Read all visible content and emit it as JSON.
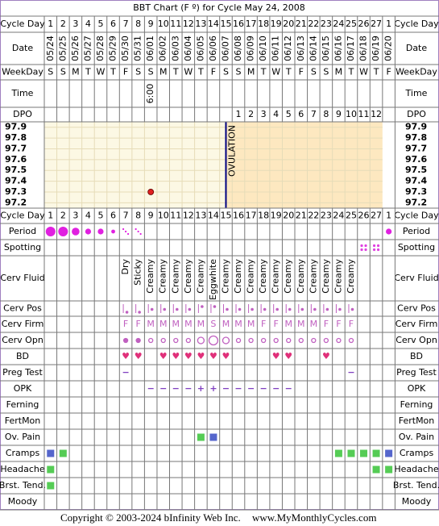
{
  "title": "BBT Chart (F º) for Cycle May 24, 2008",
  "labels": {
    "cycle_day": "Cycle Day",
    "date": "Date",
    "weekday": "WeekDay",
    "time": "Time",
    "dpo": "DPO",
    "period": "Period",
    "spotting": "Spotting",
    "cerv_fluid": "Cerv Fluid",
    "cerv_pos": "Cerv Pos",
    "cerv_firm": "Cerv Firm",
    "cerv_opn": "Cerv Opn",
    "bd": "BD",
    "preg_test": "Preg Test",
    "opk": "OPK",
    "ferning": "Ferning",
    "fertmon": "FertMon",
    "ov_pain": "Ov. Pain",
    "cramps": "Cramps",
    "headache": "Headache",
    "brst_tend": "Brst. Tend.",
    "moody": "Moody"
  },
  "cycle_days": [
    1,
    2,
    3,
    4,
    5,
    6,
    7,
    8,
    9,
    10,
    11,
    12,
    13,
    14,
    15,
    16,
    17,
    18,
    19,
    20,
    21,
    22,
    23,
    24,
    25,
    26,
    27,
    1
  ],
  "dates": [
    "05/24",
    "05/25",
    "05/26",
    "05/27",
    "05/28",
    "05/29",
    "05/30",
    "05/31",
    "06/01",
    "06/02",
    "06/03",
    "06/04",
    "06/05",
    "06/06",
    "06/07",
    "06/08",
    "06/09",
    "06/10",
    "06/11",
    "06/12",
    "06/13",
    "06/14",
    "06/15",
    "06/16",
    "06/17",
    "06/18",
    "06/19",
    "06/20"
  ],
  "weekdays": [
    "S",
    "S",
    "M",
    "T",
    "W",
    "T",
    "F",
    "S",
    "S",
    "M",
    "T",
    "W",
    "T",
    "F",
    "S",
    "S",
    "M",
    "T",
    "W",
    "T",
    "F",
    "S",
    "S",
    "M",
    "T",
    "W",
    "T",
    "F"
  ],
  "times": [
    null,
    null,
    null,
    null,
    null,
    null,
    null,
    null,
    "6:00",
    null,
    null,
    null,
    null,
    null,
    null,
    null,
    null,
    null,
    null,
    null,
    null,
    null,
    null,
    null,
    null,
    null,
    null,
    null
  ],
  "dpo": [
    null,
    null,
    null,
    null,
    null,
    null,
    null,
    null,
    null,
    null,
    null,
    null,
    null,
    null,
    null,
    1,
    2,
    3,
    4,
    5,
    6,
    7,
    8,
    9,
    10,
    11,
    12,
    null
  ],
  "temperature": {
    "ylim": [
      97.15,
      97.95
    ],
    "yticks": [
      97.9,
      97.8,
      97.7,
      97.6,
      97.5,
      97.4,
      97.3,
      97.2
    ],
    "values": [
      null,
      null,
      null,
      null,
      null,
      null,
      null,
      null,
      97.3,
      null,
      null,
      null,
      null,
      null,
      null,
      null,
      null,
      null,
      null,
      null,
      null,
      null,
      null,
      null,
      null,
      null,
      null,
      null
    ],
    "color": "#e02020",
    "ovulation_label": "OVULATION",
    "ovulation_color": "#000080"
  },
  "period": {
    "color": "#e020e0",
    "values": [
      5,
      5,
      4,
      3,
      3,
      2,
      1,
      1,
      null,
      null,
      null,
      null,
      null,
      null,
      null,
      null,
      null,
      null,
      null,
      null,
      null,
      null,
      null,
      null,
      null,
      null,
      null,
      3
    ]
  },
  "spotting": {
    "color": "#e040e0",
    "values": [
      null,
      null,
      null,
      null,
      null,
      null,
      null,
      null,
      null,
      null,
      null,
      null,
      null,
      null,
      null,
      null,
      null,
      null,
      null,
      null,
      null,
      null,
      null,
      null,
      null,
      true,
      true,
      null
    ]
  },
  "cerv_fluid": [
    null,
    null,
    null,
    null,
    null,
    null,
    "Dry",
    "Sticky",
    "Creamy",
    "Creamy",
    "Creamy",
    "Creamy",
    "Creamy",
    "Eggwhite",
    "Creamy",
    "Creamy",
    "Creamy",
    "Creamy",
    "Creamy",
    "Creamy",
    "Creamy",
    "Creamy",
    "Creamy",
    "Creamy",
    "Creamy",
    null,
    null,
    null
  ],
  "cerv_pos": {
    "color": "#c060c0",
    "values": [
      null,
      null,
      null,
      null,
      null,
      null,
      1,
      1,
      2,
      2,
      2,
      2,
      3,
      3,
      2,
      2,
      2,
      2,
      2,
      2,
      2,
      2,
      2,
      2,
      2,
      null,
      null,
      null
    ]
  },
  "cerv_firm": {
    "color": "#c060c0",
    "values": [
      null,
      null,
      null,
      null,
      null,
      null,
      "F",
      "F",
      "M",
      "M",
      "M",
      "M",
      "M",
      "S",
      "M",
      "M",
      "M",
      "F",
      "F",
      "M",
      "M",
      "M",
      "F",
      "F",
      "F",
      null,
      null,
      null
    ]
  },
  "cerv_opn": {
    "color": "#c060c0",
    "values": [
      null,
      null,
      null,
      null,
      null,
      null,
      1,
      1,
      2,
      2,
      2,
      2,
      3,
      4,
      3,
      2,
      2,
      2,
      2,
      2,
      2,
      2,
      2,
      2,
      2,
      null,
      null,
      null
    ]
  },
  "bd": {
    "color": "#e0307a",
    "values": [
      null,
      null,
      null,
      null,
      null,
      null,
      "♥",
      "♥",
      null,
      "♥",
      "♥",
      "♥",
      "♥",
      "♥",
      "♥",
      null,
      null,
      null,
      "♥",
      "♥",
      null,
      null,
      "♥",
      null,
      null,
      null,
      null,
      null
    ]
  },
  "preg_test": {
    "color": "#8040c0",
    "values": [
      null,
      null,
      null,
      null,
      null,
      null,
      "−",
      null,
      null,
      null,
      null,
      null,
      null,
      null,
      null,
      null,
      null,
      null,
      null,
      null,
      null,
      null,
      null,
      null,
      "−",
      null,
      null,
      null
    ]
  },
  "opk": {
    "color": "#8040c0",
    "values": [
      null,
      null,
      null,
      null,
      null,
      null,
      null,
      null,
      "−",
      "−",
      "−",
      "−",
      "+",
      "+",
      "−",
      "−",
      "−",
      "−",
      "−",
      "−",
      null,
      null,
      null,
      null,
      null,
      null,
      null,
      null
    ]
  },
  "ov_pain": [
    null,
    null,
    null,
    null,
    null,
    null,
    null,
    null,
    null,
    null,
    null,
    null,
    "#55cc55",
    "#5566cc",
    null,
    null,
    null,
    null,
    null,
    null,
    null,
    null,
    null,
    null,
    null,
    null,
    null,
    null
  ],
  "cramps": [
    "#5566cc",
    "#55cc55",
    null,
    null,
    null,
    null,
    null,
    null,
    null,
    null,
    null,
    null,
    null,
    null,
    null,
    null,
    null,
    null,
    null,
    null,
    null,
    null,
    null,
    "#55cc55",
    "#55cc55",
    "#55cc55",
    "#55cc55",
    "#5566cc"
  ],
  "headache": [
    "#55cc55",
    null,
    null,
    null,
    null,
    null,
    null,
    null,
    null,
    null,
    null,
    null,
    null,
    null,
    null,
    null,
    null,
    null,
    null,
    null,
    null,
    null,
    null,
    null,
    null,
    null,
    "#55cc55",
    "#55cc55"
  ],
  "brst_tend": [
    "#55cc55",
    null,
    null,
    null,
    null,
    null,
    null,
    null,
    null,
    null,
    null,
    null,
    null,
    null,
    null,
    null,
    null,
    null,
    null,
    null,
    null,
    null,
    null,
    null,
    null,
    null,
    null,
    null
  ],
  "footer": {
    "copyright": "Copyright © 2003-2024 bInfinity Web Inc.",
    "site": "www.MyMonthlyCycles.com"
  }
}
